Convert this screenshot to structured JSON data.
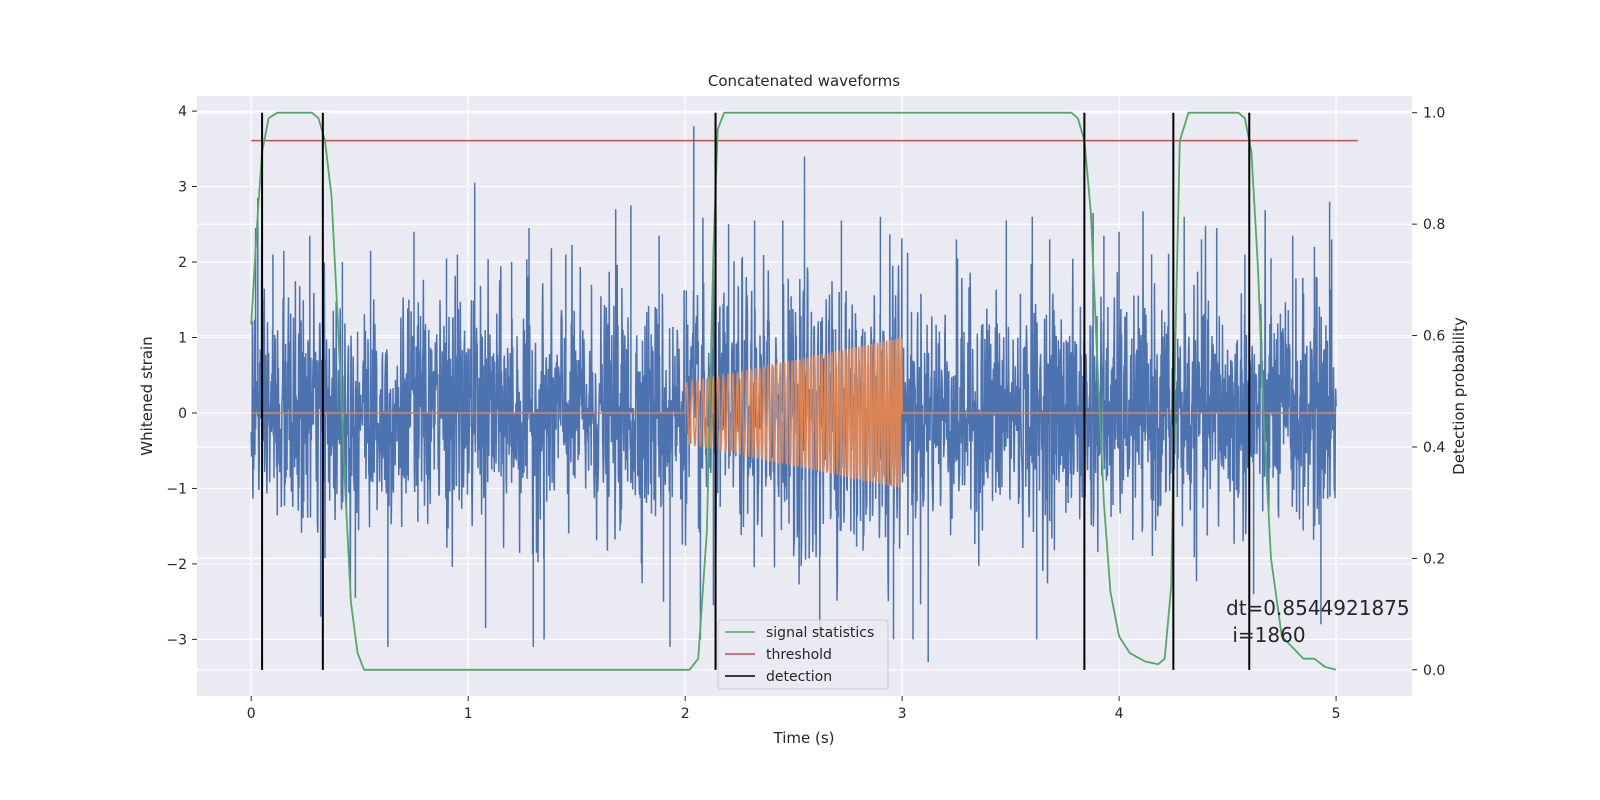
{
  "chart_data": {
    "type": "line",
    "title": "Concatenated waveforms",
    "xlabel": "Time (s)",
    "ylabel": "Whitened strain",
    "ylabel_right": "Detection probability",
    "xlim": [
      -0.25,
      5.35
    ],
    "ylim": [
      -3.75,
      4.2
    ],
    "ylim_right": [
      -0.047,
      1.03
    ],
    "x_ticks": [
      0,
      1,
      2,
      3,
      4,
      5
    ],
    "y_ticks": [
      -3,
      -2,
      -1,
      0,
      1,
      2,
      3,
      4
    ],
    "y_ticks_right": [
      0.0,
      0.2,
      0.4,
      0.6,
      0.8,
      1.0
    ],
    "grid": true,
    "background": "#EAEAF2",
    "legend_position": "lower-center",
    "series": [
      {
        "name": "",
        "kind": "noise",
        "color": "#4C72B0",
        "x_range": [
          0,
          5
        ],
        "noise_std": 0.75,
        "spikes": [
          [
            0.02,
            2.45
          ],
          [
            0.03,
            2.85
          ],
          [
            0.1,
            2.1
          ],
          [
            0.15,
            2.15
          ],
          [
            0.27,
            2.35
          ],
          [
            0.32,
            -2.7
          ],
          [
            0.42,
            2.0
          ],
          [
            0.48,
            -2.45
          ],
          [
            0.55,
            2.15
          ],
          [
            0.63,
            -3.1
          ],
          [
            0.75,
            2.4
          ],
          [
            0.9,
            2.05
          ],
          [
            0.95,
            2.1
          ],
          [
            1.03,
            3.05
          ],
          [
            1.08,
            -2.85
          ],
          [
            1.2,
            2.0
          ],
          [
            1.28,
            2.45
          ],
          [
            1.3,
            -3.1
          ],
          [
            1.35,
            -3.0
          ],
          [
            1.45,
            2.1
          ],
          [
            1.68,
            2.7
          ],
          [
            1.75,
            2.75
          ],
          [
            1.88,
            2.35
          ],
          [
            1.9,
            -2.5
          ],
          [
            1.93,
            -3.1
          ],
          [
            2.04,
            3.8
          ],
          [
            2.07,
            -3.0
          ],
          [
            2.13,
            -2.55
          ],
          [
            2.2,
            2.5
          ],
          [
            2.32,
            2.55
          ],
          [
            2.45,
            2.55
          ],
          [
            2.55,
            3.4
          ],
          [
            2.62,
            -3.0
          ],
          [
            2.72,
            2.55
          ],
          [
            2.9,
            2.6
          ],
          [
            2.96,
            -3.0
          ],
          [
            3.05,
            -3.0
          ],
          [
            3.12,
            -3.3
          ],
          [
            3.25,
            2.3
          ],
          [
            3.48,
            2.55
          ],
          [
            3.6,
            2.6
          ],
          [
            3.62,
            -3.0
          ],
          [
            3.68,
            2.3
          ],
          [
            3.88,
            2.65
          ],
          [
            3.93,
            2.35
          ],
          [
            4.0,
            2.4
          ],
          [
            4.15,
            2.1
          ],
          [
            4.3,
            2.6
          ],
          [
            4.38,
            2.3
          ],
          [
            4.45,
            2.45
          ],
          [
            4.58,
            2.1
          ],
          [
            4.62,
            -2.4
          ],
          [
            4.7,
            2.05
          ],
          [
            4.8,
            2.35
          ],
          [
            4.9,
            2.2
          ],
          [
            4.93,
            -2.8
          ],
          [
            4.97,
            2.8
          ],
          [
            4.98,
            2.3
          ]
        ]
      },
      {
        "name": "",
        "kind": "chirp",
        "color": "#DD8452",
        "x_range": [
          0,
          5
        ],
        "chirp_start": 2.0,
        "chirp_end": 3.0,
        "amp_start": 0.4,
        "amp_end": 1.0,
        "freq_start": 38,
        "freq_end": 75
      }
    ],
    "signal_statistics": {
      "name": "signal statistics",
      "color": "#55A868",
      "axis": "right",
      "x": [
        0.0,
        0.03,
        0.05,
        0.08,
        0.12,
        0.2,
        0.28,
        0.31,
        0.34,
        0.37,
        0.4,
        0.43,
        0.46,
        0.49,
        0.52,
        0.6,
        2.02,
        2.06,
        2.1,
        2.13,
        2.15,
        2.18,
        2.22,
        3.78,
        3.81,
        3.84,
        3.87,
        3.9,
        3.93,
        3.96,
        4.0,
        4.05,
        4.12,
        4.18,
        4.21,
        4.24,
        4.26,
        4.28,
        4.32,
        4.55,
        4.58,
        4.61,
        4.64,
        4.67,
        4.7,
        4.75,
        4.85,
        4.9,
        4.95,
        5.0
      ],
      "y": [
        0.62,
        0.82,
        0.93,
        0.99,
        1.0,
        1.0,
        1.0,
        0.99,
        0.95,
        0.85,
        0.62,
        0.35,
        0.12,
        0.03,
        0.0,
        0.0,
        0.0,
        0.02,
        0.25,
        0.75,
        0.97,
        1.0,
        1.0,
        1.0,
        0.99,
        0.95,
        0.82,
        0.55,
        0.3,
        0.14,
        0.06,
        0.03,
        0.015,
        0.01,
        0.02,
        0.15,
        0.6,
        0.95,
        1.0,
        1.0,
        0.99,
        0.93,
        0.72,
        0.42,
        0.2,
        0.06,
        0.02,
        0.02,
        0.005,
        0.0
      ]
    },
    "threshold": {
      "name": "threshold",
      "color": "#C44E52",
      "axis": "right",
      "value": 0.95,
      "x_range": [
        0,
        5.1
      ]
    },
    "detections": {
      "name": "detection",
      "color": "#000000",
      "x": [
        0.05,
        0.33,
        2.14,
        3.84,
        4.25,
        4.6
      ],
      "y_range": [
        0.0,
        1.0
      ]
    },
    "annotation": {
      "line1": "dt=0.8544921875",
      "line2": " i=1860"
    }
  }
}
